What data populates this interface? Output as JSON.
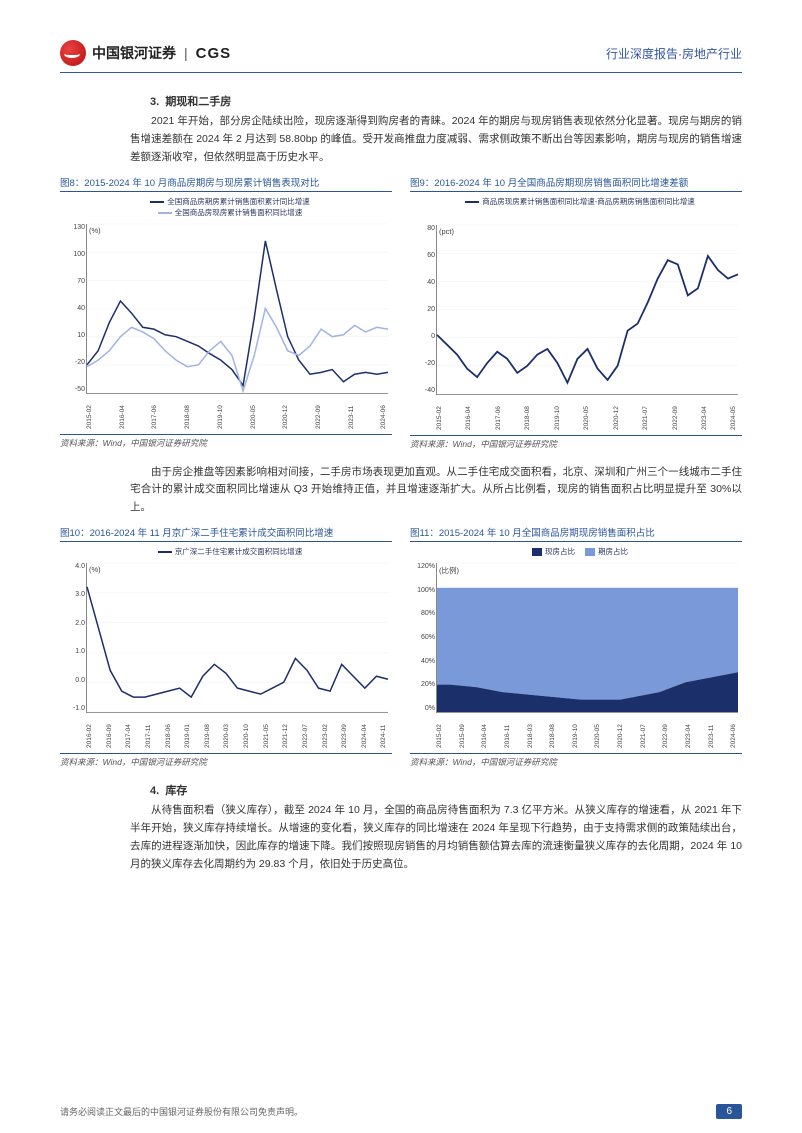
{
  "header": {
    "logo_cn": "中国银河证券",
    "logo_en": "CGS",
    "right_label": "行业深度报告",
    "right_sector": "房地产行业"
  },
  "section3": {
    "num": "3.",
    "title": "期现和二手房",
    "para": "2021 年开始，部分房企陆续出险，现房逐渐得到购房者的青睐。2024 年的期房与现房销售表现依然分化显著。现房与期房的销售增速差额在 2024 年 2 月达到 58.80bp 的峰值。受开发商推盘力度减弱、需求侧政策不断出台等因素影响，期房与现房的销售增速差额逐渐收窄，但依然明显高于历史水平。"
  },
  "mid_para": "由于房企推盘等因素影响相对间接，二手房市场表现更加直观。从二手住宅成交面积看，北京、深圳和广州三个一线城市二手住宅合计的累计成交面积同比增速从 Q3 开始维持正值，并且增速逐渐扩大。从所占比例看，现房的销售面积占比明显提升至 30%以上。",
  "section4": {
    "num": "4.",
    "title": "库存",
    "para": "从待售面积看（狭义库存），截至 2024 年 10 月，全国的商品房待售面积为 7.3 亿平方米。从狭义库存的增速看，从 2021 年下半年开始，狭义库存持续增长。从增速的变化看，狭义库存的同比增速在 2024 年呈现下行趋势，由于支持需求侧的政策陆续出台，去库的进程逐渐加快，因此库存的增速下降。我们按照现房销售的月均销售额估算去库的流速衡量狭义库存的去化周期，2024 年 10 月的狭义库存去化周期约为 29.83 个月，依旧处于历史高位。"
  },
  "source_text": "资料来源：Wind，中国银河证券研究院",
  "footer": {
    "disclaimer": "请务必阅读正文最后的中国银河证券股份有限公司免责声明。",
    "page": "6"
  },
  "fig8": {
    "title": "图8：2015-2024 年 10 月商品房期房与现房累计销售表现对比",
    "legend1": "全国商品房期房累计销售面积累计同比增速",
    "legend2": "全国商品房现房累计销售面积同比增速",
    "color1": "#1b2f6b",
    "color2": "#9fb3e6",
    "ylim": [
      -50,
      130
    ],
    "yticks": [
      130,
      100,
      70,
      40,
      10,
      -20,
      -50
    ],
    "unit": "(%)",
    "xticks": [
      "2015-02",
      "2016-04",
      "2017-06",
      "2018-08",
      "2019-10",
      "2020-05",
      "2020-12",
      "2022-09",
      "2023-11",
      "2024-06"
    ],
    "series1": [
      -20,
      -5,
      25,
      48,
      35,
      20,
      18,
      12,
      10,
      5,
      0,
      -8,
      -15,
      -25,
      -42,
      30,
      112,
      60,
      10,
      -15,
      -30,
      -28,
      -25,
      -38,
      -30,
      -28,
      -30,
      -28
    ],
    "series2": [
      -22,
      -15,
      -5,
      10,
      20,
      15,
      8,
      -5,
      -15,
      -22,
      -20,
      -5,
      5,
      -10,
      -48,
      -10,
      40,
      20,
      -5,
      -10,
      0,
      18,
      10,
      12,
      22,
      15,
      20,
      18
    ]
  },
  "fig9": {
    "title": "图9：2016-2024 年 10 月全国商品房期现房销售面积同比增速差额",
    "legend1": "商品房现房累计销售面积同比增速-商品房期房销售面积同比增速",
    "color1": "#1b2f6b",
    "ylim": [
      -40,
      80
    ],
    "yticks": [
      80,
      60,
      40,
      20,
      0,
      -20,
      -40
    ],
    "unit": "(pct)",
    "xticks": [
      "2015-02",
      "2016-04",
      "2017-06",
      "2018-08",
      "2019-10",
      "2020-05",
      "2020-12",
      "2021-07",
      "2022-09",
      "2023-04",
      "2024-05"
    ],
    "series1": [
      2,
      -5,
      -12,
      -22,
      -28,
      -18,
      -10,
      -15,
      -25,
      -20,
      -12,
      -8,
      -18,
      -32,
      -15,
      -8,
      -22,
      -30,
      -20,
      5,
      10,
      25,
      42,
      55,
      52,
      30,
      35,
      58,
      48,
      42,
      45
    ]
  },
  "fig10": {
    "title": "图10：2016-2024 年 11 月京广深二手住宅累计成交面积同比增速",
    "legend1": "京广深二手住宅累计成交面积同比增速",
    "color1": "#1b2f6b",
    "ylim": [
      -1.0,
      4.0
    ],
    "yticks": [
      "4.0",
      "3.0",
      "2.0",
      "1.0",
      "0.0",
      "-1.0"
    ],
    "unit": "(%)",
    "xticks": [
      "2016-02",
      "2016-09",
      "2017-04",
      "2017-11",
      "2018-06",
      "2019-01",
      "2019-08",
      "2020-03",
      "2020-10",
      "2021-05",
      "2021-12",
      "2022-07",
      "2023-02",
      "2023-09",
      "2024-04",
      "2024-11"
    ],
    "series1": [
      3.2,
      1.8,
      0.4,
      -0.3,
      -0.5,
      -0.5,
      -0.4,
      -0.3,
      -0.2,
      -0.5,
      0.2,
      0.6,
      0.3,
      -0.2,
      -0.3,
      -0.4,
      -0.2,
      0.0,
      0.8,
      0.4,
      -0.2,
      -0.3,
      0.6,
      0.2,
      -0.2,
      0.2,
      0.1
    ]
  },
  "fig11": {
    "title": "图11：2015-2024 年 10 月全国商品房期现房销售面积占比",
    "legend1": "现房占比",
    "legend2": "期房占比",
    "color1": "#1b2f6b",
    "color2": "#7a99d8",
    "ylim": [
      0,
      120
    ],
    "yticks": [
      "120%",
      "100%",
      "80%",
      "60%",
      "40%",
      "20%",
      "0%"
    ],
    "unit": "(比例)",
    "xticks": [
      "2015-02",
      "2015-09",
      "2016-04",
      "2016-11",
      "2018-03",
      "2018-08",
      "2019-10",
      "2020-05",
      "2020-12",
      "2021-07",
      "2022-09",
      "2023-04",
      "2023-11",
      "2024-06"
    ],
    "xianfang": [
      22,
      22,
      21,
      20,
      18,
      16,
      15,
      14,
      13,
      12,
      11,
      10,
      10,
      10,
      10,
      12,
      14,
      16,
      20,
      24,
      26,
      28,
      30,
      32
    ],
    "total": 100
  }
}
